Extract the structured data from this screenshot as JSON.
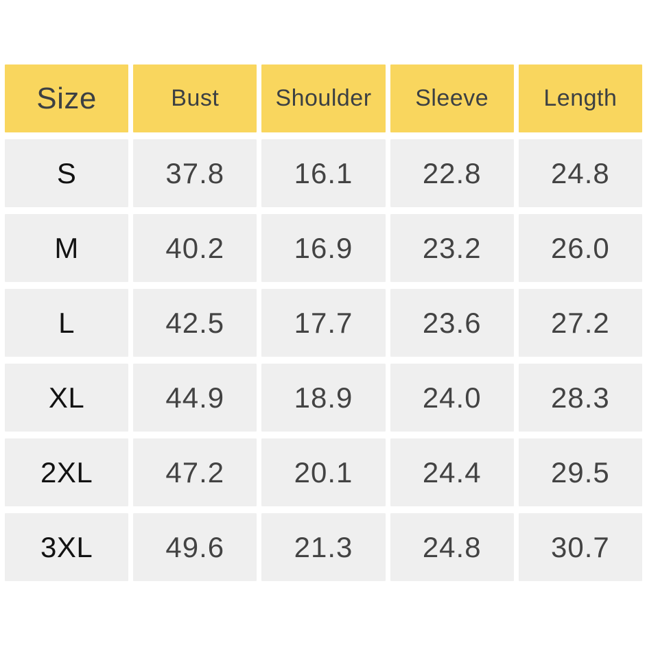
{
  "colors": {
    "header_bg": "#F9D65E",
    "cell_bg": "#EFEFEF",
    "header_text": "#3C4043",
    "value_text": "#434343",
    "size_text": "#121212",
    "page_bg": "#FFFFFF"
  },
  "chart_data": {
    "type": "table",
    "columns": [
      "Size",
      "Bust",
      "Shoulder",
      "Sleeve",
      "Length"
    ],
    "rows": [
      [
        "S",
        "37.8",
        "16.1",
        "22.8",
        "24.8"
      ],
      [
        "M",
        "40.2",
        "16.9",
        "23.2",
        "26.0"
      ],
      [
        "L",
        "42.5",
        "17.7",
        "23.6",
        "27.2"
      ],
      [
        "XL",
        "44.9",
        "18.9",
        "24.0",
        "28.3"
      ],
      [
        "2XL",
        "47.2",
        "20.1",
        "24.4",
        "29.5"
      ],
      [
        "3XL",
        "49.6",
        "21.3",
        "24.8",
        "30.7"
      ]
    ],
    "layout_hints": {
      "header_row": true,
      "grid": "separated-cells",
      "units": "inches (implied, not shown)"
    }
  }
}
